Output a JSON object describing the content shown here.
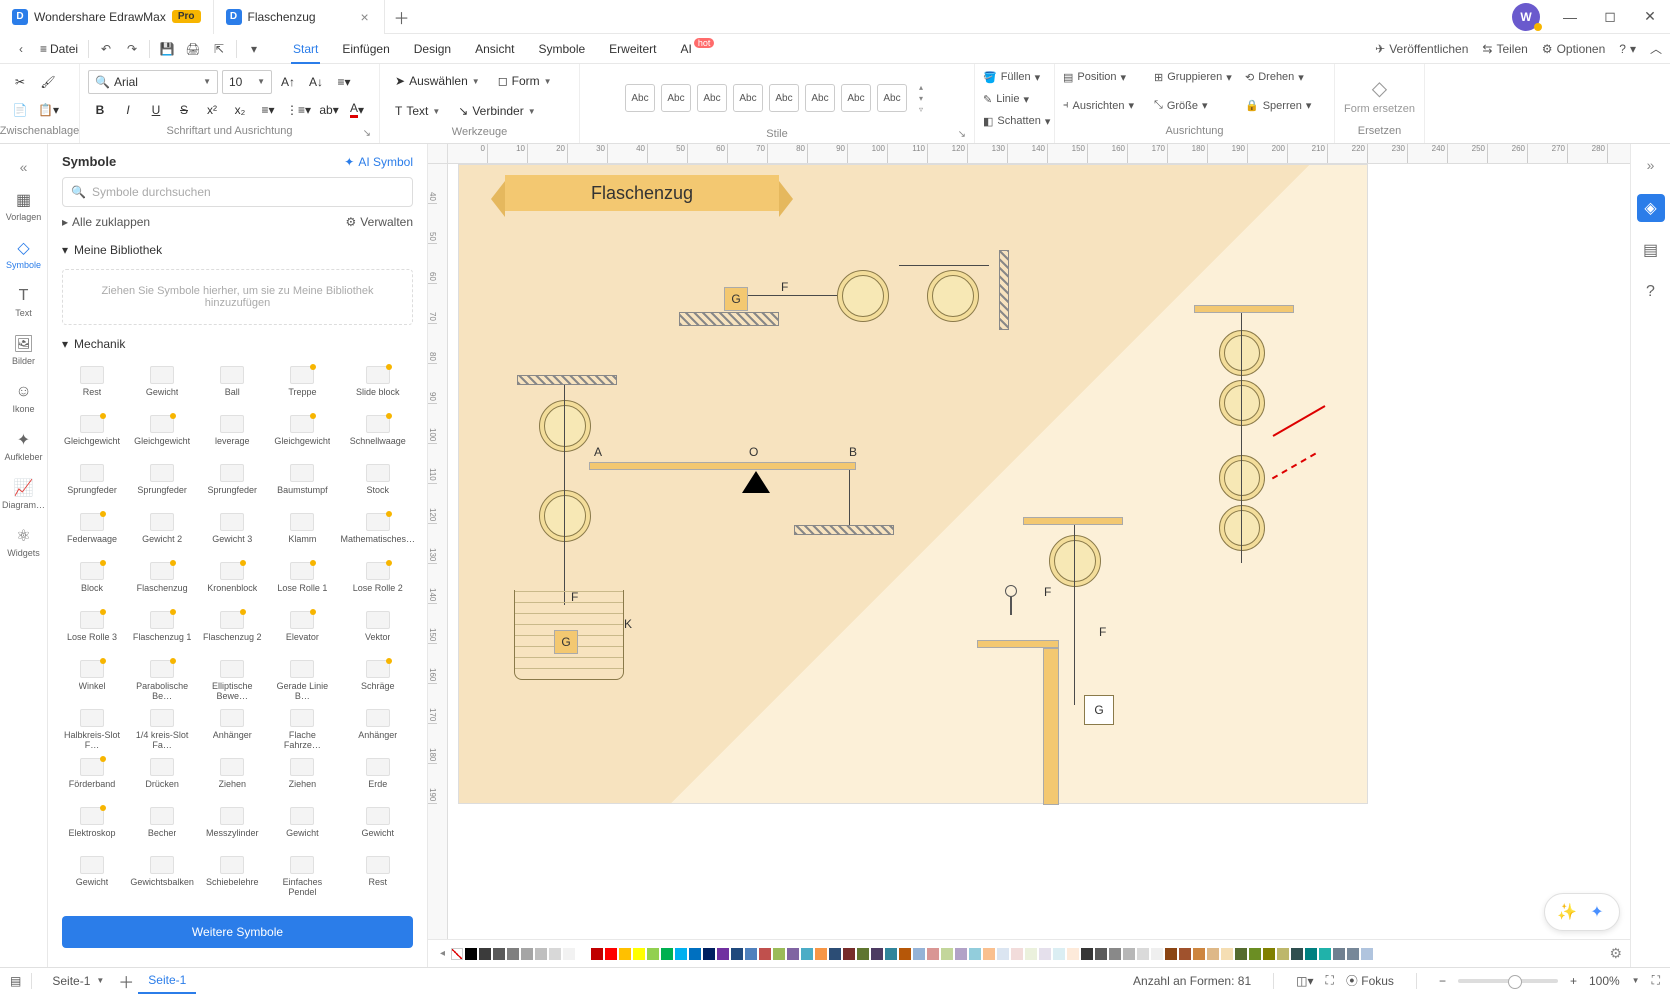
{
  "app": {
    "name": "Wondershare EdrawMax",
    "pro_badge": "Pro",
    "document_name": "Flaschenzug"
  },
  "toolbar": {
    "file_label": "Datei"
  },
  "menu": {
    "start": "Start",
    "einfugen": "Einfügen",
    "design": "Design",
    "ansicht": "Ansicht",
    "symbole": "Symbole",
    "erweitert": "Erweitert",
    "ai": "AI",
    "ai_badge": "hot"
  },
  "right_actions": {
    "publish": "Veröffentlichen",
    "share": "Teilen",
    "options": "Optionen"
  },
  "ribbon": {
    "clipboard_label": "Zwischenablage",
    "font_name": "Arial",
    "font_size": "10",
    "font_group_label": "Schriftart und Ausrichtung",
    "tools": {
      "select": "Auswählen",
      "form": "Form",
      "text": "Text",
      "connector": "Verbinder",
      "group_label": "Werkzeuge"
    },
    "styles": {
      "swatch": "Abc",
      "group_label": "Stile"
    },
    "fill": {
      "fill": "Füllen",
      "line": "Linie",
      "shadow": "Schatten"
    },
    "arrange": {
      "position": "Position",
      "group": "Gruppieren",
      "rotate": "Drehen",
      "align": "Ausrichten",
      "size": "Größe",
      "lock": "Sperren",
      "group_label": "Ausrichtung"
    },
    "replace": {
      "title": "Form ersetzen",
      "group_label": "Ersetzen"
    }
  },
  "vnav": {
    "vorlagen": "Vorlagen",
    "symbole": "Symbole",
    "text": "Text",
    "bilder": "Bilder",
    "ikone": "Ikone",
    "aufkleber": "Aufkleber",
    "diagram": "Diagram…",
    "widgets": "Widgets"
  },
  "sym_panel": {
    "title": "Symbole",
    "ai_symbol": "AI Symbol",
    "search_placeholder": "Symbole durchsuchen",
    "collapse_all": "Alle zuklappen",
    "manage": "Verwalten",
    "my_library": "Meine Bibliothek",
    "dropzone": "Ziehen Sie Symbole hierher, um sie zu Meine Bibliothek hinzuzufügen",
    "mechanics": "Mechanik",
    "more_btn": "Weitere Symbole",
    "items": [
      "Rest",
      "Gewicht",
      "Ball",
      "Treppe",
      "Slide block",
      "Gleichgewicht",
      "Gleichgewicht",
      "leverage",
      "Gleichgewicht",
      "Schnellwaage",
      "Sprungfeder",
      "Sprungfeder",
      "Sprungfeder",
      "Baumstumpf",
      "Stock",
      "Federwaage",
      "Gewicht 2",
      "Gewicht 3",
      "Klamm",
      "Mathematisches…",
      "Block",
      "Flaschenzug",
      "Kronenblock",
      "Lose Rolle 1",
      "Lose Rolle 2",
      "Lose Rolle 3",
      "Flaschenzug 1",
      "Flaschenzug 2",
      "Elevator",
      "Vektor",
      "Winkel",
      "Parabolische Be…",
      "Elliptische Bewe…",
      "Gerade Linie B…",
      "Schräge",
      "Halbkreis-Slot F…",
      "1/4 kreis-Slot Fa…",
      "Anhänger",
      "Flache Fahrze…",
      "Anhänger",
      "Förderband",
      "Drücken",
      "Ziehen",
      "Ziehen",
      "Erde",
      "Elektroskop",
      "Becher",
      "Messzylinder",
      "Gewicht",
      "Gewicht",
      "Gewicht",
      "Gewichtsbalken",
      "Schiebelehre",
      "Einfaches Pendel",
      "Rest"
    ]
  },
  "canvas": {
    "title": "Flaschenzug",
    "labels": {
      "F": "F",
      "G": "G",
      "K": "K",
      "A": "A",
      "O": "O",
      "B": "B"
    }
  },
  "statusbar": {
    "page_select": "Seite-1",
    "page_tab": "Seite-1",
    "shapes_count": "Anzahl an Formen: 81",
    "focus": "Fokus",
    "zoom": "100%"
  },
  "avatar_letter": "W",
  "ruler_ticks_h": [
    "0",
    "10",
    "20",
    "30",
    "40",
    "50",
    "60",
    "70",
    "80",
    "90",
    "100",
    "110",
    "120",
    "130",
    "140",
    "150",
    "160",
    "170",
    "180",
    "190",
    "200",
    "210",
    "220",
    "230",
    "240",
    "250",
    "260",
    "270",
    "280"
  ],
  "ruler_ticks_v": [
    "40",
    "50",
    "60",
    "70",
    "80",
    "90",
    "100",
    "110",
    "120",
    "130",
    "140",
    "150",
    "160",
    "170",
    "180",
    "190"
  ],
  "color_swatches": [
    "#000000",
    "#3b3b3b",
    "#595959",
    "#7f7f7f",
    "#a5a5a5",
    "#bfbfbf",
    "#d8d8d8",
    "#f2f2f2",
    "#ffffff",
    "#c00000",
    "#ff0000",
    "#ffc000",
    "#ffff00",
    "#92d050",
    "#00b050",
    "#00b0f0",
    "#0070c0",
    "#002060",
    "#7030a0",
    "#1f497d",
    "#4f81bd",
    "#c0504d",
    "#9bbb59",
    "#8064a2",
    "#4bacc6",
    "#f79646",
    "#2c4d75",
    "#772c2a",
    "#5f7530",
    "#4d3b62",
    "#31859b",
    "#b65708",
    "#95b3d7",
    "#d99694",
    "#c3d69b",
    "#b2a2c7",
    "#92cddc",
    "#fac08f",
    "#dbe5f1",
    "#f2dcdb",
    "#ebf1dd",
    "#e5e0ec",
    "#dbeef3",
    "#fdeada",
    "#363636",
    "#5a5a5a",
    "#898989",
    "#b7b7b7",
    "#dadada",
    "#efefef",
    "#8b4513",
    "#a0522d",
    "#cd853f",
    "#deb887",
    "#f5deb3",
    "#556b2f",
    "#6b8e23",
    "#808000",
    "#bdb76b",
    "#2f4f4f",
    "#008080",
    "#20b2aa",
    "#708090",
    "#778899",
    "#b0c4de"
  ]
}
